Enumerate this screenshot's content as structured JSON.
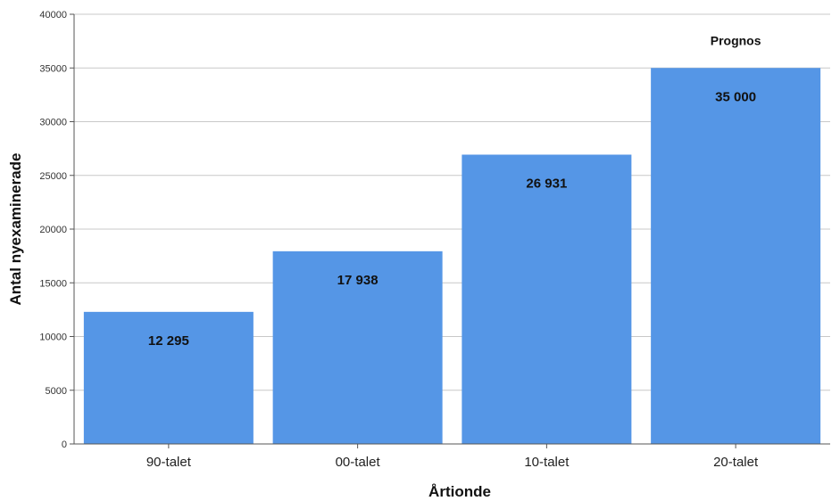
{
  "chart_data": {
    "type": "bar",
    "categories": [
      "90-talet",
      "00-talet",
      "10-talet",
      "20-talet"
    ],
    "values": [
      12295,
      17938,
      26931,
      35000
    ],
    "data_labels": [
      "12 295",
      "17 938",
      "26 931",
      "35 000"
    ],
    "title": "",
    "xlabel": "Årtionde",
    "ylabel": "Antal nyexaminerade",
    "ylim": [
      0,
      40000
    ],
    "yticks": [
      0,
      5000,
      10000,
      15000,
      20000,
      25000,
      30000,
      35000,
      40000
    ],
    "grid": true,
    "legend": "none",
    "annotations": [
      {
        "category": "20-talet",
        "text": "Prognos"
      }
    ],
    "colors": {
      "bar": "#5596e6",
      "grid": "#c8c8c8",
      "axis": "#555555"
    }
  }
}
